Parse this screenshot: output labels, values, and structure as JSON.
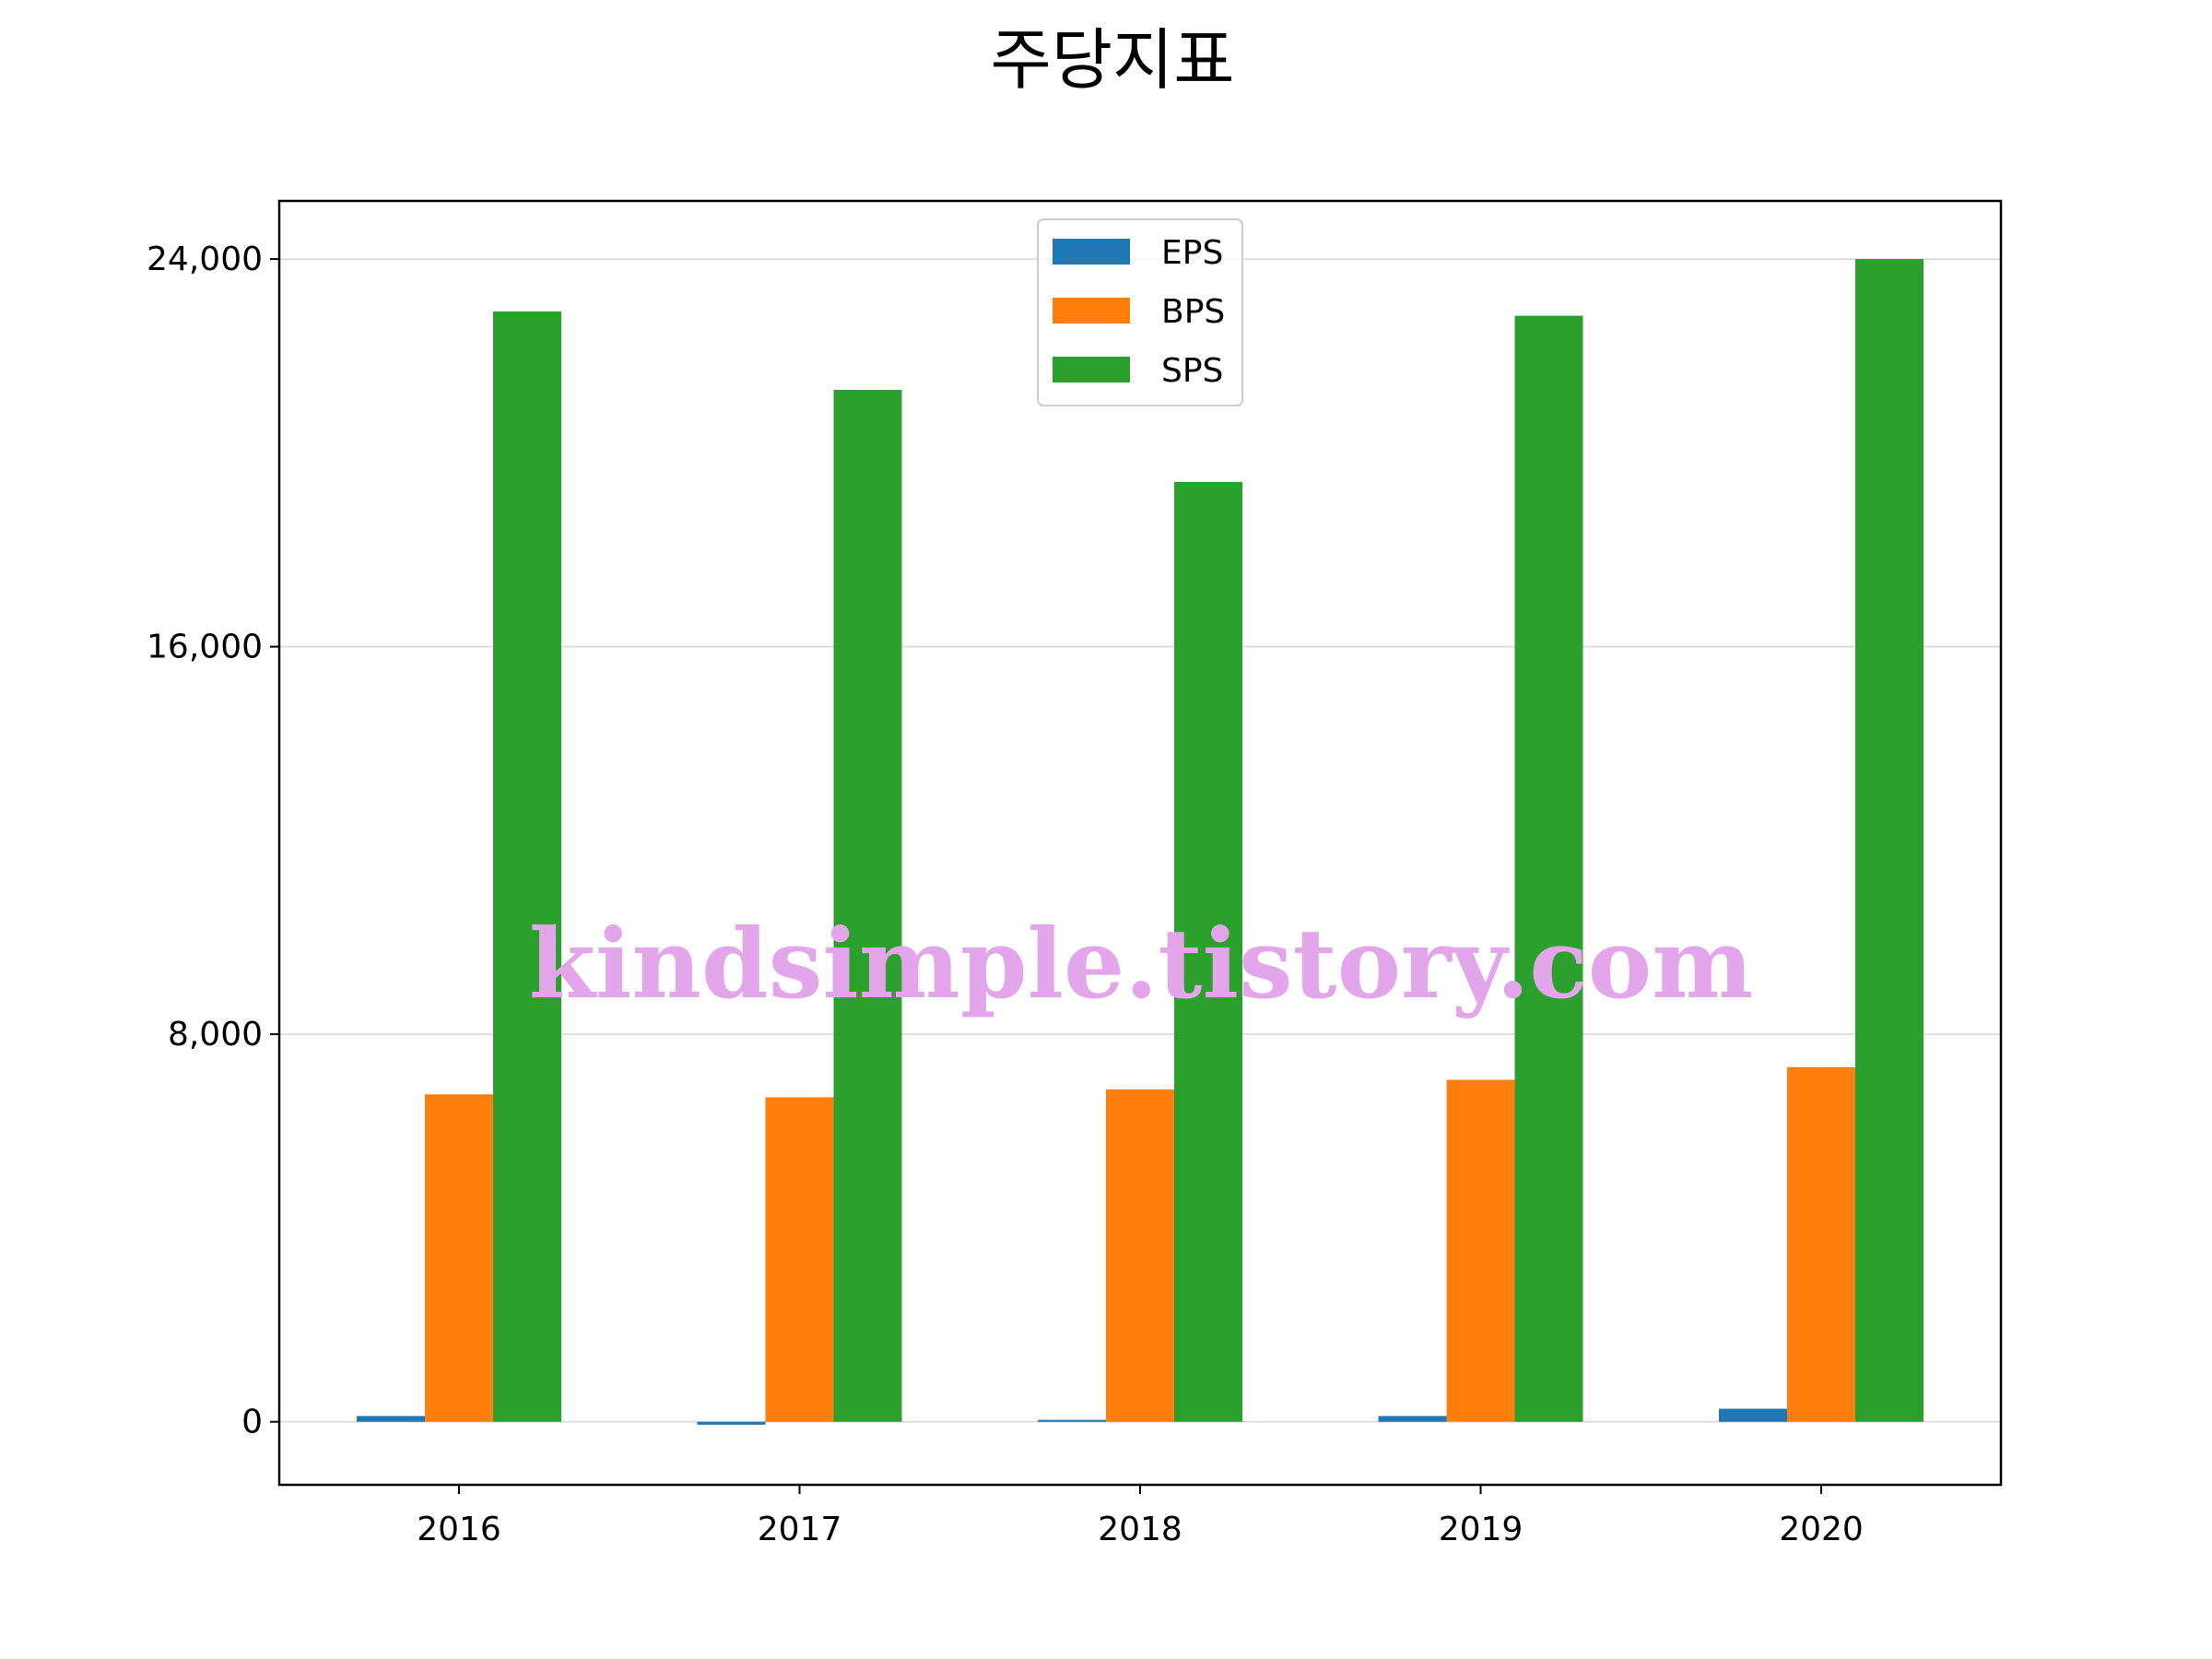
{
  "chart_data": {
    "type": "bar",
    "title": "주당지표",
    "categories": [
      "2016",
      "2017",
      "2018",
      "2019",
      "2020"
    ],
    "series": [
      {
        "name": "EPS",
        "color": "#1f77b4",
        "values": [
          120,
          -60,
          40,
          120,
          270
        ]
      },
      {
        "name": "BPS",
        "color": "#ff7f0e",
        "values": [
          6760,
          6700,
          6860,
          7060,
          7320
        ]
      },
      {
        "name": "SPS",
        "color": "#2ca02c",
        "values": [
          22920,
          21300,
          19400,
          22830,
          24000
        ]
      }
    ],
    "y_ticks": [
      0,
      8000,
      16000,
      24000
    ],
    "y_tick_labels": [
      "0",
      "8,000",
      "16,000",
      "24,000"
    ],
    "ylim": [
      -1300,
      25200
    ],
    "grid": "y",
    "legend_position": "top-center",
    "xlabel": "",
    "ylabel": ""
  },
  "watermark": "kindsimple.tistory.com"
}
